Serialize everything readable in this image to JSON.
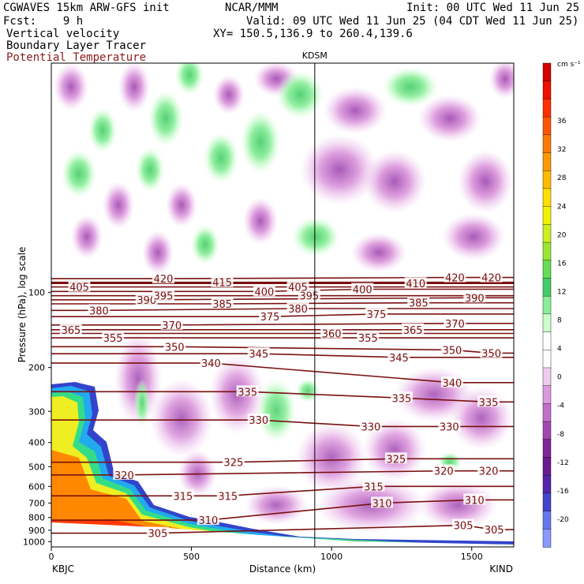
{
  "header": {
    "model": "CGWAVES 15km ARW-GFS init",
    "org": "NCAR/MMM",
    "init": "Init: 00 UTC Wed 11 Jun 25",
    "fcst": "Fcst:    9 h",
    "valid": "Valid: 09 UTC Wed 11 Jun 25 (04 CDT Wed 11 Jun 25)",
    "field1": "Vertical velocity",
    "field2": "Boundary Layer Tracer",
    "field3": "Potential Temperature",
    "xy": "XY= 150.5,136.9 to 260.4,139.6"
  },
  "colors": {
    "theta_contour": "#7a1010",
    "plot_bg": "#ffffff"
  },
  "chart_data": {
    "type": "heatmap",
    "xlabel": "Distance (km)",
    "ylabel": "Pressure (hPa), log scale",
    "x_ticks": [
      0,
      500,
      1000,
      1500
    ],
    "xlim": [
      0,
      1650
    ],
    "y_ticks": [
      100,
      200,
      300,
      400,
      500,
      600,
      700,
      800,
      900,
      1000
    ],
    "y_scale": "log",
    "ylim": [
      1050,
      12
    ],
    "station_mid": "KDSM",
    "station_mid_x": 940,
    "station_left": "KBJC",
    "station_right": "KIND",
    "colorbar": {
      "unit": "cm s⁻¹",
      "tick_labels": [
        "36",
        "32",
        "28",
        "24",
        "20",
        "16",
        "12",
        "8",
        "4",
        "0",
        "-4",
        "-8",
        "-12",
        "-16",
        "-20"
      ],
      "colors": [
        "#d40000",
        "#ee1000",
        "#ff3000",
        "#ff5500",
        "#ff7800",
        "#ff9800",
        "#ffbb00",
        "#ffe000",
        "#f2f200",
        "#ccee22",
        "#99e633",
        "#66dd55",
        "#44cc66",
        "#88ee99",
        "#ccffcc",
        "#ffffff",
        "#ffffff",
        "#eeccee",
        "#dd99dd",
        "#c070c8",
        "#a048b0",
        "#802898",
        "#6a1a90",
        "#5522aa",
        "#4444cc",
        "#6677ee",
        "#8899ff"
      ]
    },
    "theta_contours": [
      {
        "value": 305,
        "labels": [
          [
            380,
            925
          ],
          [
            1470,
            860
          ],
          [
            1580,
            895
          ]
        ]
      },
      {
        "value": 310,
        "labels": [
          [
            560,
            820
          ],
          [
            1180,
            700
          ],
          [
            1510,
            680
          ]
        ]
      },
      {
        "value": 315,
        "labels": [
          [
            470,
            655
          ],
          [
            630,
            655
          ],
          [
            1150,
            600
          ]
        ]
      },
      {
        "value": 320,
        "labels": [
          [
            260,
            540
          ],
          [
            1400,
            520
          ],
          [
            1560,
            520
          ]
        ]
      },
      {
        "value": 325,
        "labels": [
          [
            650,
            480
          ],
          [
            1230,
            465
          ]
        ]
      },
      {
        "value": 330,
        "labels": [
          [
            740,
            325
          ],
          [
            1140,
            345
          ],
          [
            1420,
            345
          ]
        ]
      },
      {
        "value": 335,
        "labels": [
          [
            700,
            250
          ],
          [
            1250,
            265
          ],
          [
            1560,
            275
          ]
        ]
      },
      {
        "value": 340,
        "labels": [
          [
            570,
            192
          ],
          [
            1430,
            230
          ]
        ]
      },
      {
        "value": 345,
        "labels": [
          [
            740,
            176
          ],
          [
            1240,
            182
          ]
        ]
      },
      {
        "value": 350,
        "labels": [
          [
            440,
            165
          ],
          [
            1430,
            170
          ],
          [
            1570,
            175
          ]
        ]
      },
      {
        "value": 355,
        "labels": [
          [
            220,
            152
          ],
          [
            1130,
            152
          ]
        ]
      },
      {
        "value": 360,
        "labels": [
          [
            1000,
            146
          ]
        ]
      },
      {
        "value": 365,
        "labels": [
          [
            70,
            141
          ],
          [
            1290,
            141
          ]
        ]
      },
      {
        "value": 370,
        "labels": [
          [
            430,
            135
          ],
          [
            1440,
            133
          ]
        ]
      },
      {
        "value": 375,
        "labels": [
          [
            780,
            125
          ],
          [
            1160,
            122
          ]
        ]
      },
      {
        "value": 380,
        "labels": [
          [
            170,
            118
          ],
          [
            880,
            116
          ]
        ]
      },
      {
        "value": 385,
        "labels": [
          [
            610,
            111
          ],
          [
            1310,
            110
          ]
        ]
      },
      {
        "value": 390,
        "labels": [
          [
            340,
            107
          ],
          [
            1510,
            105
          ]
        ]
      },
      {
        "value": 395,
        "labels": [
          [
            400,
            103
          ],
          [
            920,
            103
          ]
        ]
      },
      {
        "value": 400,
        "labels": [
          [
            760,
            99
          ],
          [
            1110,
            97
          ]
        ]
      },
      {
        "value": 405,
        "labels": [
          [
            100,
            95
          ],
          [
            880,
            95
          ]
        ]
      },
      {
        "value": 410,
        "labels": [
          [
            1300,
            92
          ]
        ]
      },
      {
        "value": 415,
        "labels": [
          [
            610,
            91
          ]
        ]
      },
      {
        "value": 420,
        "labels": [
          [
            400,
            88
          ],
          [
            1440,
            87
          ],
          [
            1570,
            87
          ]
        ]
      }
    ]
  }
}
